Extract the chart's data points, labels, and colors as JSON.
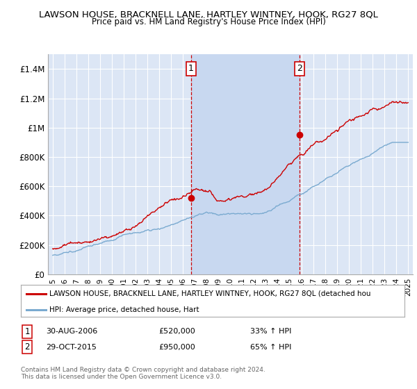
{
  "title": "LAWSON HOUSE, BRACKNELL LANE, HARTLEY WINTNEY, HOOK, RG27 8QL",
  "subtitle": "Price paid vs. HM Land Registry's House Price Index (HPI)",
  "background_color": "#ffffff",
  "plot_bg_color": "#dce6f5",
  "highlight_bg_color": "#c8d8f0",
  "grid_color": "#ffffff",
  "ylim": [
    0,
    1500000
  ],
  "yticks": [
    0,
    200000,
    400000,
    600000,
    800000,
    1000000,
    1200000,
    1400000
  ],
  "ytick_labels": [
    "£0",
    "£200K",
    "£400K",
    "£600K",
    "£800K",
    "£1M",
    "£1.2M",
    "£1.4M"
  ],
  "sale1_price": 520000,
  "sale1_date_str": "30-AUG-2006",
  "sale1_hpi_pct": "33% ↑ HPI",
  "sale1_year": 2006.667,
  "sale2_price": 950000,
  "sale2_date_str": "29-OCT-2015",
  "sale2_hpi_pct": "65% ↑ HPI",
  "sale2_year": 2015.833,
  "legend_line1": "LAWSON HOUSE, BRACKNELL LANE, HARTLEY WINTNEY, HOOK, RG27 8QL (detached hou",
  "legend_line2": "HPI: Average price, detached house, Hart",
  "footer1": "Contains HM Land Registry data © Crown copyright and database right 2024.",
  "footer2": "This data is licensed under the Open Government Licence v3.0.",
  "hpi_color": "#7aaad0",
  "price_color": "#cc0000",
  "marker_color": "#cc0000",
  "dashed_color": "#cc0000",
  "box_color": "#cc0000",
  "xlim_left": 1994.6,
  "xlim_right": 2025.4
}
